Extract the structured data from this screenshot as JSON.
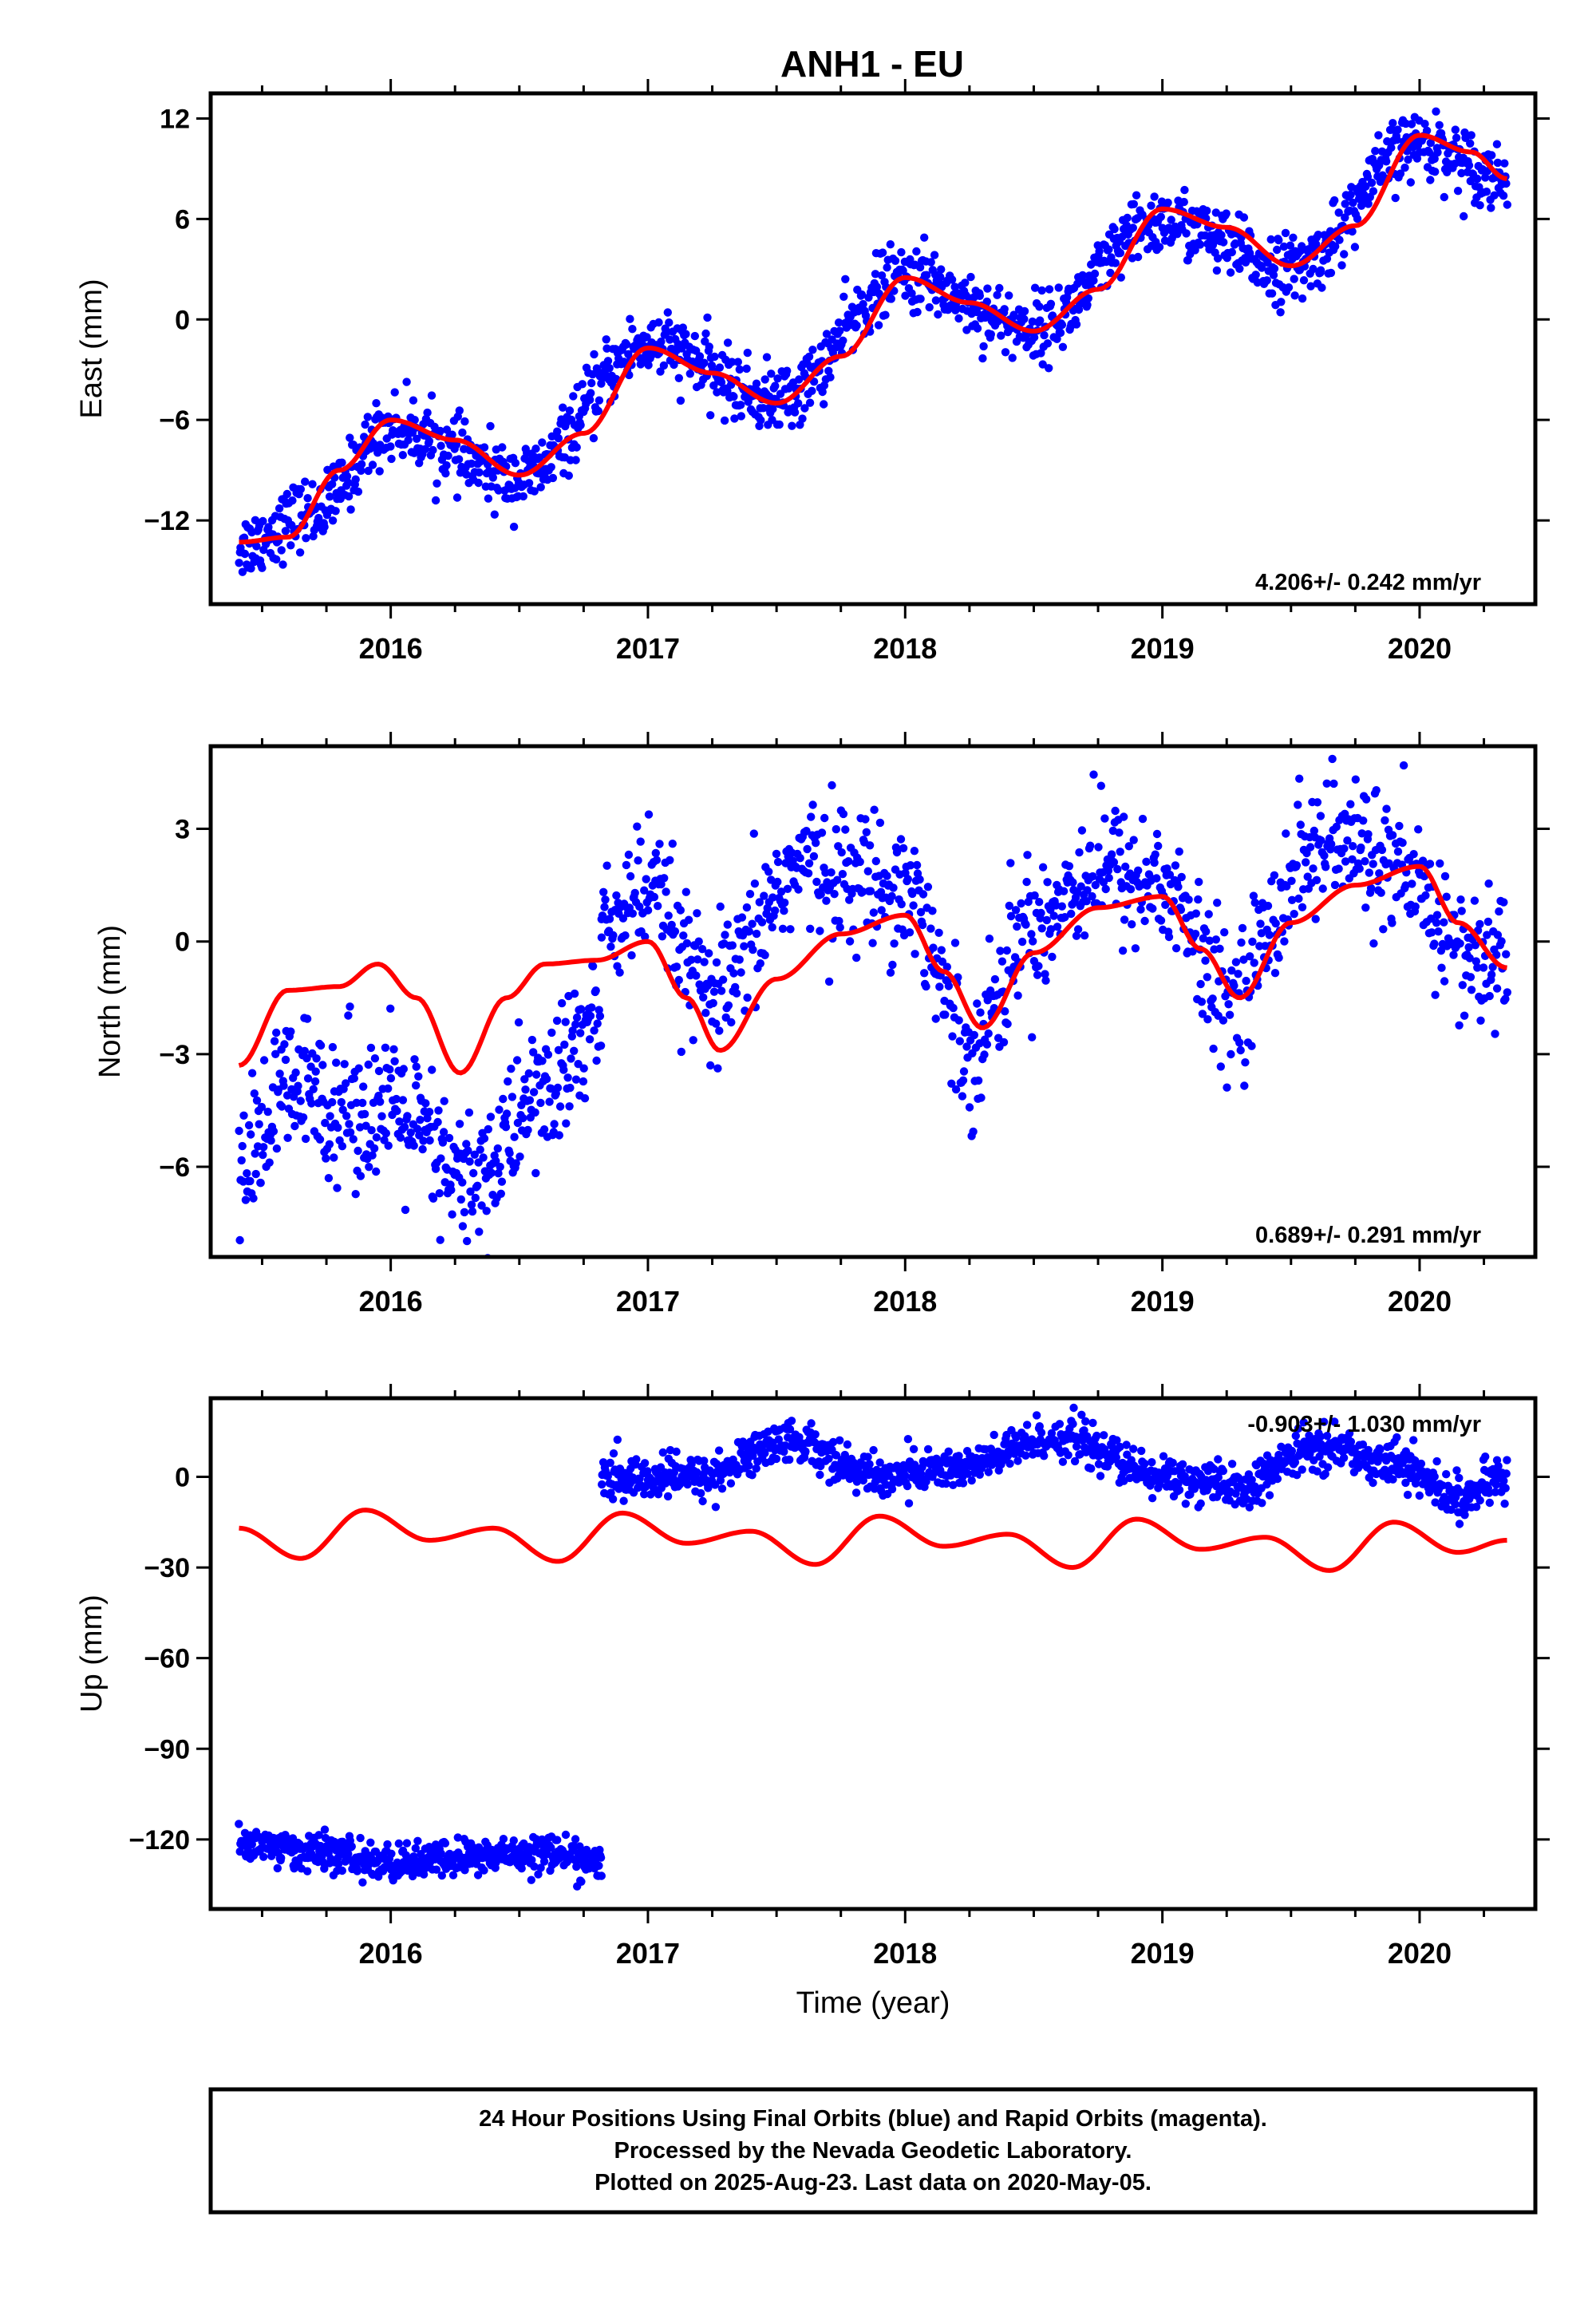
{
  "figure": {
    "title": "ANH1 - EU",
    "footer": [
      "24 Hour Positions Using Final Orbits (blue) and Rapid Orbits (magenta).",
      "Processed by the Nevada Geodetic Laboratory.",
      "Plotted on 2025-Aug-23. Last data on 2020-May-05."
    ],
    "colors": {
      "data": "#0000ff",
      "model": "#ff0000",
      "frame": "#000000"
    }
  },
  "chart_data": [
    {
      "type": "scatter",
      "ylabel": "East (mm)",
      "xlim": [
        2015.3,
        2020.45
      ],
      "ylim": [
        -17,
        13.5
      ],
      "yticks": [
        12,
        6,
        0,
        -6,
        -12
      ],
      "ytick_labels": [
        "12",
        "6",
        "0",
        "−6",
        "−12"
      ],
      "xticks": [
        2016,
        2017,
        2018,
        2019,
        2020
      ],
      "xtick_labels": [
        "2016",
        "2017",
        "2018",
        "2019",
        "2020"
      ],
      "rate_label": "4.206+/- 0.242 mm/yr",
      "series": [
        {
          "kind": "points",
          "segments": [
            {
              "x_range": [
                2015.41,
                2020.34
              ],
              "trend": {
                "x": [
                  2015.41,
                  2015.7,
                  2016.0,
                  2016.5,
                  2017.0,
                  2017.5,
                  2018.0,
                  2018.5,
                  2019.0,
                  2019.5,
                  2020.0,
                  2020.34
                ],
                "y": [
                  -13.5,
                  -11.5,
                  -6.5,
                  -9.5,
                  -1.5,
                  -4.8,
                  2.5,
                  -0.5,
                  5.8,
                  3.0,
                  10.5,
                  8.5
                ]
              },
              "scatter": 1.0,
              "n": 1500
            }
          ]
        },
        {
          "kind": "line",
          "x": [
            2015.41,
            2015.6,
            2015.8,
            2016.0,
            2016.25,
            2016.5,
            2016.75,
            2017.0,
            2017.25,
            2017.5,
            2017.75,
            2018.0,
            2018.25,
            2018.5,
            2018.75,
            2019.0,
            2019.25,
            2019.5,
            2019.75,
            2020.0,
            2020.2,
            2020.34
          ],
          "y": [
            -13.3,
            -13.0,
            -9.0,
            -6.0,
            -7.2,
            -9.3,
            -6.8,
            -1.7,
            -3.2,
            -5.0,
            -2.2,
            2.5,
            1.0,
            -0.7,
            1.8,
            6.6,
            5.5,
            3.2,
            5.6,
            11.0,
            10.0,
            8.4
          ]
        }
      ]
    },
    {
      "type": "scatter",
      "ylabel": "North (mm)",
      "xlim": [
        2015.3,
        2020.45
      ],
      "ylim": [
        -8.4,
        5.2
      ],
      "yticks": [
        3,
        0,
        -3,
        -6
      ],
      "ytick_labels": [
        "3",
        "0",
        "−3",
        "−6"
      ],
      "xticks": [
        2016,
        2017,
        2018,
        2019,
        2020
      ],
      "xtick_labels": [
        "2016",
        "2017",
        "2018",
        "2019",
        "2020"
      ],
      "rate_label": "0.689+/- 0.291 mm/yr",
      "series": [
        {
          "kind": "points",
          "segments": [
            {
              "x_range": [
                2015.41,
                2016.82
              ],
              "trend": {
                "x": [
                  2015.41,
                  2015.6,
                  2016.0,
                  2016.3,
                  2016.6,
                  2016.82
                ],
                "y": [
                  -6.2,
                  -4.0,
                  -4.5,
                  -6.5,
                  -4.0,
                  -2.0
                ]
              },
              "scatter": 1.0,
              "n": 430
            },
            {
              "x_range": [
                2016.82,
                2020.34
              ],
              "trend": {
                "x": [
                  2016.82,
                  2017.0,
                  2017.25,
                  2017.6,
                  2018.0,
                  2018.25,
                  2018.5,
                  2018.75,
                  2019.0,
                  2019.25,
                  2019.6,
                  2019.8,
                  2020.0,
                  2020.2,
                  2020.34
                ],
                "y": [
                  0.5,
                  1.2,
                  -1.5,
                  2.0,
                  1.5,
                  -2.8,
                  0.5,
                  2.0,
                  1.5,
                  -1.5,
                  2.5,
                  2.5,
                  1.2,
                  -0.5,
                  -0.5
                ]
              },
              "scatter": 0.9,
              "n": 1000
            }
          ]
        },
        {
          "kind": "line",
          "x": [
            2015.41,
            2015.6,
            2015.8,
            2015.95,
            2016.1,
            2016.27,
            2016.45,
            2016.6,
            2016.8,
            2017.0,
            2017.15,
            2017.28,
            2017.5,
            2017.75,
            2018.0,
            2018.15,
            2018.3,
            2018.5,
            2018.75,
            2019.0,
            2019.15,
            2019.3,
            2019.5,
            2019.75,
            2020.0,
            2020.15,
            2020.34
          ],
          "y": [
            -3.3,
            -1.3,
            -1.2,
            -0.6,
            -1.5,
            -3.5,
            -1.5,
            -0.6,
            -0.5,
            0.0,
            -1.5,
            -2.9,
            -1.0,
            0.2,
            0.7,
            -0.8,
            -2.3,
            -0.3,
            0.9,
            1.2,
            -0.2,
            -1.5,
            0.5,
            1.5,
            2.0,
            0.5,
            -0.7
          ]
        }
      ]
    },
    {
      "type": "scatter",
      "ylabel": "Up (mm)",
      "xlim": [
        2015.3,
        2020.45
      ],
      "ylim": [
        -143,
        26
      ],
      "yticks": [
        0,
        -30,
        -60,
        -90,
        -120
      ],
      "ytick_labels": [
        "0",
        "−30",
        "−60",
        "−90",
        "−120"
      ],
      "xticks": [
        2016,
        2017,
        2018,
        2019,
        2020
      ],
      "xtick_labels": [
        "2016",
        "2017",
        "2018",
        "2019",
        "2020"
      ],
      "xlabel": "Time (year)",
      "rate_label": "-0.903+/- 1.030 mm/yr",
      "series": [
        {
          "kind": "points",
          "segments": [
            {
              "x_range": [
                2015.41,
                2016.82
              ],
              "trend": {
                "x": [
                  2015.41,
                  2015.7,
                  2016.0,
                  2016.3,
                  2016.6,
                  2016.82
                ],
                "y": [
                  -121,
                  -124,
                  -128,
                  -126,
                  -124,
                  -128
                ]
              },
              "scatter": 3.0,
              "n": 500
            },
            {
              "x_range": [
                2016.82,
                2020.34
              ],
              "trend": {
                "x": [
                  2016.82,
                  2017.2,
                  2017.55,
                  2017.9,
                  2018.2,
                  2018.6,
                  2019.0,
                  2019.3,
                  2019.6,
                  2019.9,
                  2020.15,
                  2020.34
                ],
                "y": [
                  -1,
                  0,
                  12,
                  0,
                  3,
                  13,
                  0,
                  -4,
                  10,
                  5,
                  -7,
                  0
                ]
              },
              "scatter": 3.5,
              "n": 1150
            }
          ]
        },
        {
          "kind": "line",
          "x": [
            2015.41,
            2015.65,
            2015.9,
            2016.15,
            2016.4,
            2016.65,
            2016.9,
            2017.15,
            2017.4,
            2017.65,
            2017.9,
            2018.15,
            2018.4,
            2018.65,
            2018.9,
            2019.15,
            2019.4,
            2019.65,
            2019.9,
            2020.15,
            2020.34
          ],
          "y": [
            -17,
            -27,
            -11,
            -21,
            -17,
            -28,
            -12,
            -22,
            -18,
            -29,
            -13,
            -23,
            -19,
            -30,
            -14,
            -24,
            -20,
            -31,
            -15,
            -25,
            -21
          ]
        }
      ]
    }
  ]
}
